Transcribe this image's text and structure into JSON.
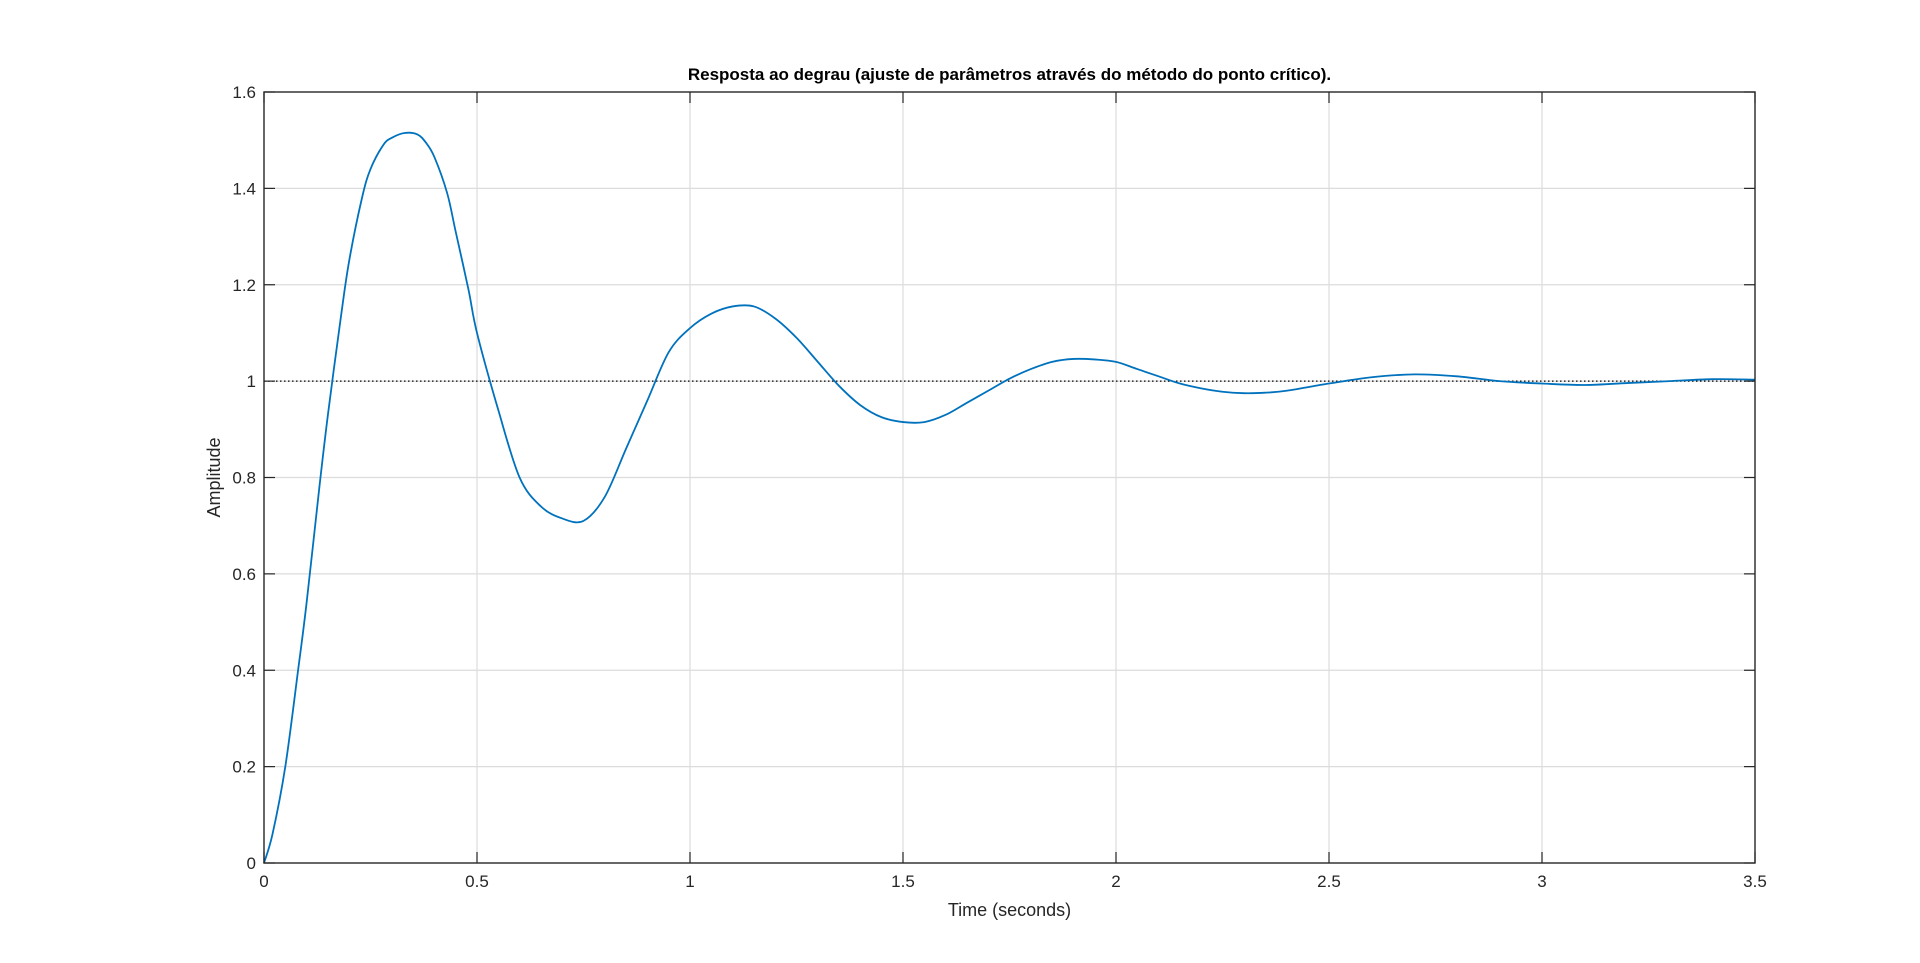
{
  "chart_data": {
    "type": "line",
    "title": "Resposta ao degrau (ajuste de parâmetros através do método do ponto crítico).",
    "xlabel": "Time (seconds)",
    "ylabel": "Amplitude",
    "xlim": [
      0,
      3.5
    ],
    "ylim": [
      0,
      1.6
    ],
    "xticks": [
      0,
      0.5,
      1,
      1.5,
      2,
      2.5,
      3,
      3.5
    ],
    "xtick_labels": [
      "0",
      "0.5",
      "1",
      "1.5",
      "2",
      "2.5",
      "3",
      "3.5"
    ],
    "yticks": [
      0,
      0.2,
      0.4,
      0.6,
      0.8,
      1,
      1.2,
      1.4,
      1.6
    ],
    "ytick_labels": [
      "0",
      "0.2",
      "0.4",
      "0.6",
      "0.8",
      "1",
      "1.2",
      "1.4",
      "1.6"
    ],
    "grid": true,
    "reference_line": {
      "y": 1,
      "style": "dotted",
      "color": "#000000"
    },
    "series": [
      {
        "color": "#0072BD",
        "x": [
          0,
          0.02,
          0.05,
          0.08,
          0.1,
          0.13,
          0.15,
          0.18,
          0.2,
          0.23,
          0.25,
          0.28,
          0.3,
          0.33,
          0.36,
          0.38,
          0.4,
          0.43,
          0.45,
          0.48,
          0.5,
          0.55,
          0.6,
          0.65,
          0.7,
          0.75,
          0.8,
          0.85,
          0.9,
          0.95,
          1.0,
          1.05,
          1.1,
          1.15,
          1.2,
          1.25,
          1.3,
          1.35,
          1.4,
          1.45,
          1.5,
          1.55,
          1.6,
          1.65,
          1.7,
          1.75,
          1.8,
          1.85,
          1.9,
          1.95,
          2.0,
          2.05,
          2.1,
          2.15,
          2.2,
          2.25,
          2.3,
          2.35,
          2.4,
          2.5,
          2.6,
          2.7,
          2.8,
          2.9,
          3.0,
          3.1,
          3.2,
          3.3,
          3.4,
          3.5
        ],
        "y": [
          0,
          0.06,
          0.2,
          0.4,
          0.54,
          0.78,
          0.93,
          1.13,
          1.25,
          1.38,
          1.44,
          1.49,
          1.505,
          1.515,
          1.512,
          1.495,
          1.465,
          1.39,
          1.31,
          1.19,
          1.1,
          0.94,
          0.8,
          0.74,
          0.715,
          0.71,
          0.76,
          0.86,
          0.96,
          1.06,
          1.11,
          1.14,
          1.155,
          1.155,
          1.13,
          1.09,
          1.04,
          0.99,
          0.95,
          0.925,
          0.915,
          0.915,
          0.93,
          0.955,
          0.98,
          1.005,
          1.025,
          1.04,
          1.046,
          1.045,
          1.04,
          1.025,
          1.01,
          0.995,
          0.985,
          0.978,
          0.975,
          0.976,
          0.98,
          0.995,
          1.008,
          1.014,
          1.01,
          1.0,
          0.995,
          0.992,
          0.996,
          1.0,
          1.004,
          1.003
        ]
      }
    ]
  }
}
